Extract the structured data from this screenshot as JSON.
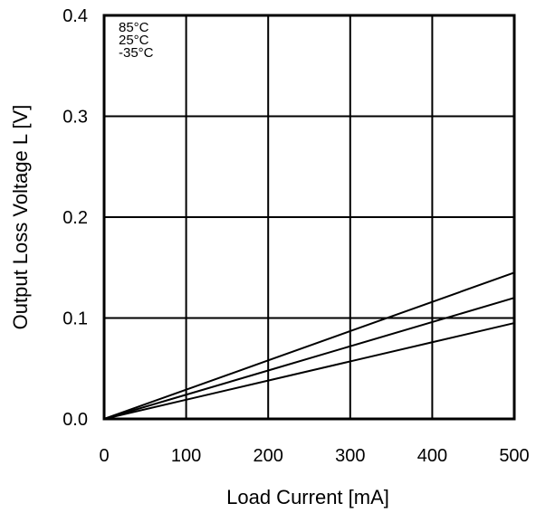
{
  "chart_data": {
    "type": "line",
    "title": "",
    "xlabel": "Load Current [mA]",
    "ylabel": "Output Loss Voltage L [V]",
    "xlim": [
      0,
      500
    ],
    "ylim": [
      0,
      0.4
    ],
    "xticks": [
      0,
      100,
      200,
      300,
      400,
      500
    ],
    "yticks": [
      0.0,
      0.1,
      0.2,
      0.3,
      0.4
    ],
    "xtick_labels": [
      "0",
      "100",
      "200",
      "300",
      "400",
      "500"
    ],
    "ytick_labels": [
      "0.0",
      "0.1",
      "0.2",
      "0.3",
      "0.4"
    ],
    "grid": true,
    "legend_position": "top-left",
    "legend": [
      "85°C",
      "25°C",
      "-35°C"
    ],
    "series": [
      {
        "name": "85°C",
        "x": [
          0,
          100,
          200,
          300,
          400,
          500
        ],
        "values": [
          0,
          0.029,
          0.058,
          0.087,
          0.116,
          0.145
        ]
      },
      {
        "name": "25°C",
        "x": [
          0,
          100,
          200,
          300,
          400,
          500
        ],
        "values": [
          0,
          0.024,
          0.048,
          0.072,
          0.096,
          0.12
        ]
      },
      {
        "name": "-35°C",
        "x": [
          0,
          100,
          200,
          300,
          400,
          500
        ],
        "values": [
          0,
          0.019,
          0.038,
          0.057,
          0.076,
          0.095
        ]
      }
    ],
    "colors": {
      "line": "#000000",
      "grid": "#000000",
      "background": "#ffffff"
    }
  }
}
